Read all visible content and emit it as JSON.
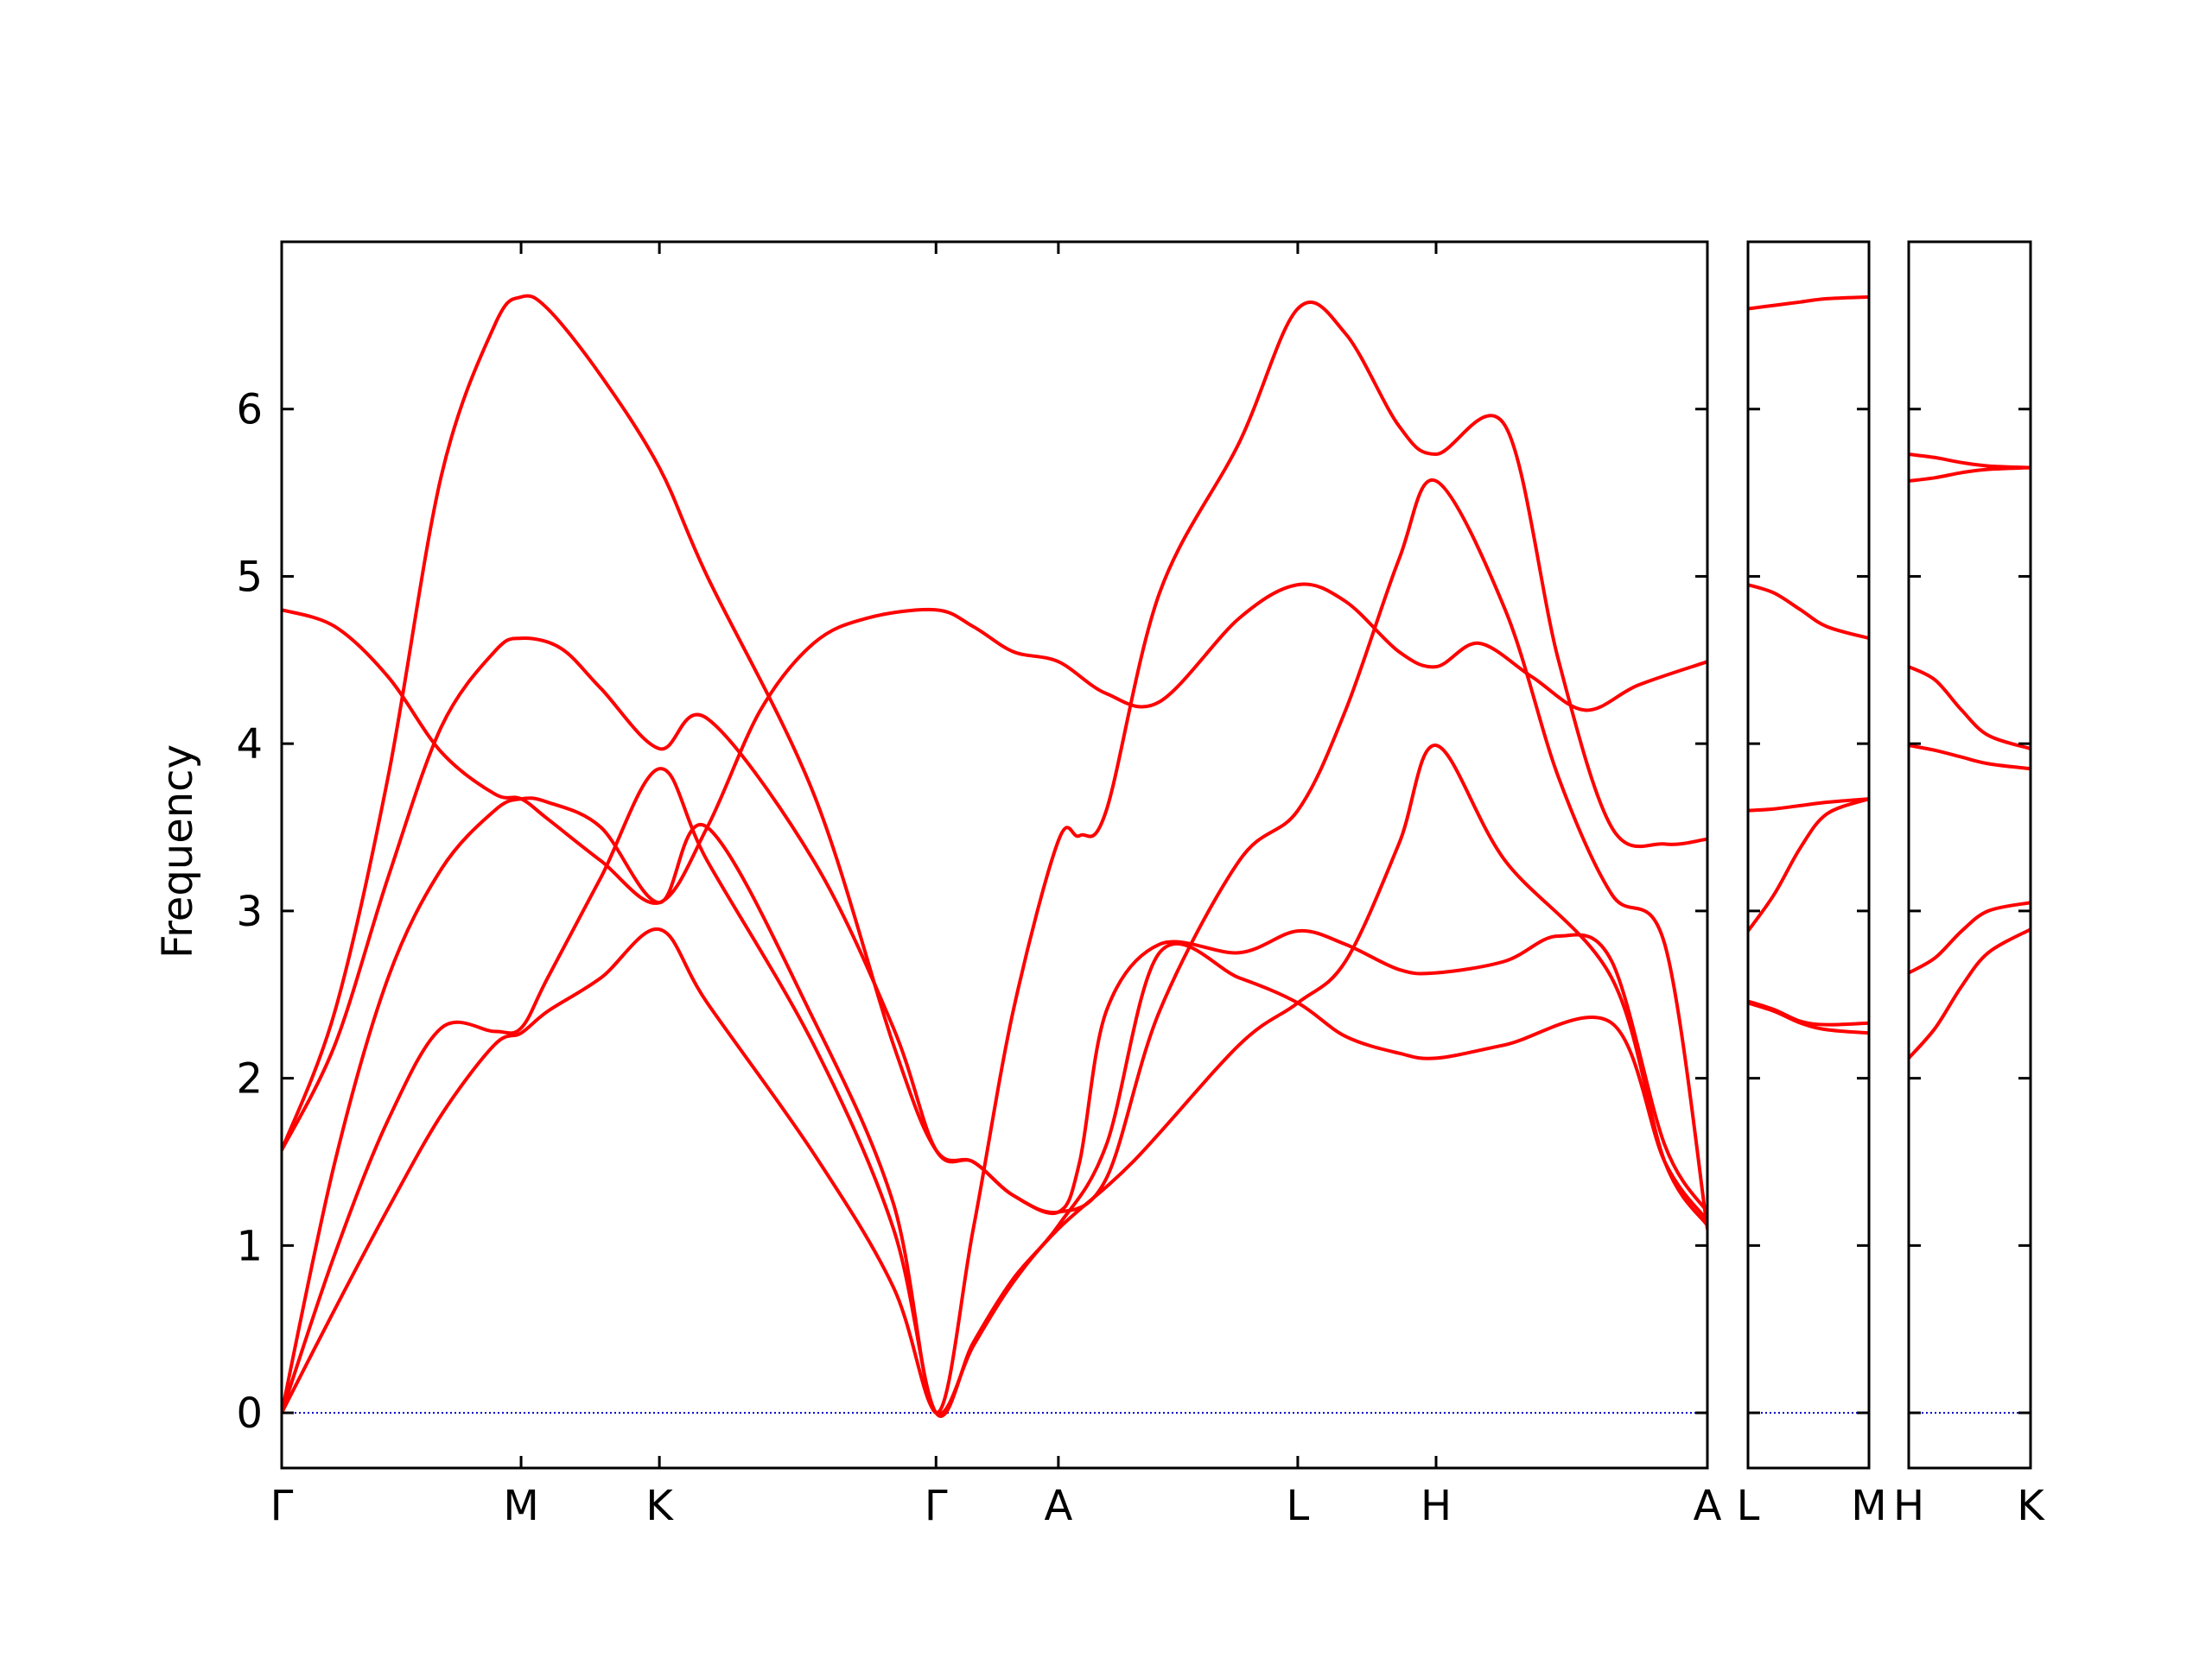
{
  "chart_data": {
    "type": "line",
    "title": "",
    "ylabel": "Frequency",
    "ylim": [
      -0.33,
      7.0
    ],
    "yticks": [
      0,
      1,
      2,
      3,
      4,
      5,
      6
    ],
    "line_color": "#ff0000",
    "zero_line_color": "#0000cc",
    "panels": [
      {
        "xlim": [
          0,
          5.36
        ],
        "ticks": [
          {
            "x": 0.0,
            "label": "Γ"
          },
          {
            "x": 0.9,
            "label": "M"
          },
          {
            "x": 1.42,
            "label": "K"
          },
          {
            "x": 2.46,
            "label": "Γ"
          },
          {
            "x": 2.92,
            "label": "A"
          },
          {
            "x": 3.82,
            "label": "L"
          },
          {
            "x": 4.34,
            "label": "H"
          },
          {
            "x": 5.36,
            "label": "A"
          }
        ],
        "bands": [
          {
            "x": [
              0,
              0.2,
              0.4,
              0.6,
              0.8,
              0.9,
              1.0,
              1.2,
              1.42,
              1.6,
              2.0,
              2.3,
              2.46,
              2.6,
              2.75,
              2.92,
              3.2,
              3.6,
              3.82,
              4.0,
              4.2,
              4.34,
              4.6,
              5.0,
              5.2,
              5.36
            ],
            "y": [
              0,
              0.62,
              1.22,
              1.78,
              2.2,
              2.27,
              2.4,
              2.6,
              2.89,
              2.45,
              1.55,
              0.75,
              0,
              0.4,
              0.78,
              1.1,
              1.5,
              2.2,
              2.45,
              2.7,
              3.4,
              3.99,
              3.3,
              2.6,
              1.5,
              1.12
            ]
          },
          {
            "x": [
              0,
              0.2,
              0.4,
              0.6,
              0.8,
              0.9,
              1.0,
              1.2,
              1.42,
              1.6,
              2.0,
              2.3,
              2.46,
              2.6,
              2.75,
              2.92,
              3.1,
              3.3,
              3.6,
              3.82,
              4.0,
              4.2,
              4.34,
              4.6,
              5.0,
              5.2,
              5.36
            ],
            "y": [
              0,
              0.95,
              1.75,
              2.3,
              2.28,
              2.3,
              2.6,
              3.2,
              3.85,
              3.3,
              2.2,
              1.1,
              0,
              0.42,
              0.8,
              1.12,
              1.6,
              2.75,
              2.6,
              2.45,
              2.25,
              2.15,
              2.12,
              2.2,
              2.33,
              1.5,
              1.15
            ]
          },
          {
            "x": [
              0,
              0.2,
              0.4,
              0.6,
              0.8,
              0.9,
              1.0,
              1.2,
              1.42,
              1.6,
              2.0,
              2.3,
              2.46,
              2.6,
              2.75,
              2.92,
              3.0,
              3.1,
              3.3,
              3.6,
              3.82,
              4.0,
              4.2,
              4.34,
              4.6,
              4.8,
              5.0,
              5.2,
              5.36
            ],
            "y": [
              0,
              1.5,
              2.6,
              3.25,
              3.6,
              3.67,
              3.65,
              3.5,
              3.05,
              3.5,
              2.35,
              1.25,
              0,
              1.1,
              2.4,
              3.42,
              3.45,
              3.6,
              4.9,
              5.8,
              6.6,
              6.45,
              5.9,
              5.73,
              5.9,
              4.5,
              3.5,
              3.4,
              3.43
            ]
          },
          {
            "x": [
              0,
              0.2,
              0.4,
              0.6,
              0.8,
              0.9,
              1.05,
              1.2,
              1.42,
              1.6,
              2.0,
              2.3,
              2.46,
              2.6,
              2.75,
              2.92,
              3.0,
              3.1,
              3.3,
              3.6,
              3.82,
              4.0,
              4.2,
              4.34,
              4.6,
              4.8,
              5.0,
              5.2,
              5.36
            ],
            "y": [
              1.57,
              2.2,
              3.2,
              4.1,
              4.55,
              4.63,
              4.57,
              4.33,
              3.97,
              4.15,
              3.3,
              2.3,
              1.57,
              1.5,
              1.3,
              1.2,
              1.5,
              2.4,
              2.8,
              2.75,
              2.88,
              2.8,
              2.65,
              2.63,
              2.7,
              2.85,
              2.7,
              1.6,
              1.2
            ]
          },
          {
            "x": [
              0,
              0.2,
              0.4,
              0.6,
              0.8,
              0.9,
              1.0,
              1.2,
              1.42,
              1.6,
              2.0,
              2.3,
              2.46,
              2.6,
              2.75,
              2.92,
              3.1,
              3.3,
              3.6,
              3.82,
              4.0,
              4.2,
              4.34,
              4.6,
              4.8,
              5.0,
              5.2,
              5.36
            ],
            "y": [
              1.57,
              2.4,
              3.8,
              5.6,
              6.5,
              6.67,
              6.6,
              6.2,
              5.65,
              5.0,
              3.7,
              2.2,
              1.57,
              1.5,
              1.3,
              1.2,
              1.4,
              2.4,
              3.3,
              3.6,
              4.2,
              5.1,
              5.57,
              4.8,
              3.8,
              3.1,
              2.8,
              1.1
            ]
          },
          {
            "x": [
              0,
              0.2,
              0.4,
              0.6,
              0.8,
              0.9,
              1.0,
              1.2,
              1.42,
              1.6,
              1.8,
              2.0,
              2.2,
              2.46,
              2.6,
              2.75,
              2.92,
              3.1,
              3.3,
              3.6,
              3.82,
              4.0,
              4.2,
              4.34,
              4.5,
              4.7,
              4.9,
              5.1,
              5.36
            ],
            "y": [
              4.8,
              4.7,
              4.4,
              3.95,
              3.7,
              3.67,
              3.55,
              3.3,
              3.05,
              3.5,
              4.2,
              4.6,
              4.75,
              4.8,
              4.7,
              4.55,
              4.49,
              4.3,
              4.25,
              4.75,
              4.95,
              4.85,
              4.55,
              4.46,
              4.6,
              4.4,
              4.2,
              4.35,
              4.49
            ]
          }
        ]
      },
      {
        "xlim": [
          0,
          0.46
        ],
        "ticks": [
          {
            "x": 0,
            "label": "L"
          },
          {
            "x": 0.46,
            "label": "M"
          }
        ],
        "bands": [
          {
            "x": [
              0,
              0.1,
              0.2,
              0.3,
              0.46
            ],
            "y": [
              2.45,
              2.4,
              2.33,
              2.29,
              2.27
            ]
          },
          {
            "x": [
              0,
              0.1,
              0.2,
              0.3,
              0.46
            ],
            "y": [
              2.46,
              2.41,
              2.34,
              2.32,
              2.33
            ]
          },
          {
            "x": [
              0,
              0.1,
              0.2,
              0.3,
              0.46
            ],
            "y": [
              2.88,
              3.1,
              3.38,
              3.58,
              3.67
            ]
          },
          {
            "x": [
              0,
              0.1,
              0.2,
              0.3,
              0.46
            ],
            "y": [
              3.6,
              3.61,
              3.63,
              3.65,
              3.67
            ]
          },
          {
            "x": [
              0,
              0.1,
              0.2,
              0.3,
              0.46
            ],
            "y": [
              4.95,
              4.9,
              4.8,
              4.7,
              4.63
            ]
          },
          {
            "x": [
              0,
              0.1,
              0.2,
              0.3,
              0.46
            ],
            "y": [
              6.6,
              6.62,
              6.64,
              6.66,
              6.67
            ]
          }
        ]
      },
      {
        "xlim": [
          0,
          0.46
        ],
        "ticks": [
          {
            "x": 0,
            "label": "H"
          },
          {
            "x": 0.46,
            "label": "K"
          }
        ],
        "bands": [
          {
            "x": [
              0,
              0.1,
              0.2,
              0.3,
              0.46
            ],
            "y": [
              2.12,
              2.3,
              2.55,
              2.75,
              2.89
            ]
          },
          {
            "x": [
              0,
              0.1,
              0.2,
              0.3,
              0.46
            ],
            "y": [
              2.63,
              2.72,
              2.88,
              3.0,
              3.05
            ]
          },
          {
            "x": [
              0,
              0.1,
              0.2,
              0.3,
              0.46
            ],
            "y": [
              3.99,
              3.96,
              3.92,
              3.88,
              3.85
            ]
          },
          {
            "x": [
              0,
              0.1,
              0.2,
              0.3,
              0.46
            ],
            "y": [
              4.46,
              4.38,
              4.2,
              4.05,
              3.97
            ]
          },
          {
            "x": [
              0,
              0.1,
              0.2,
              0.3,
              0.46
            ],
            "y": [
              5.57,
              5.59,
              5.62,
              5.64,
              5.65
            ]
          },
          {
            "x": [
              0,
              0.1,
              0.2,
              0.3,
              0.46
            ],
            "y": [
              5.73,
              5.71,
              5.68,
              5.66,
              5.65
            ]
          }
        ]
      }
    ]
  }
}
